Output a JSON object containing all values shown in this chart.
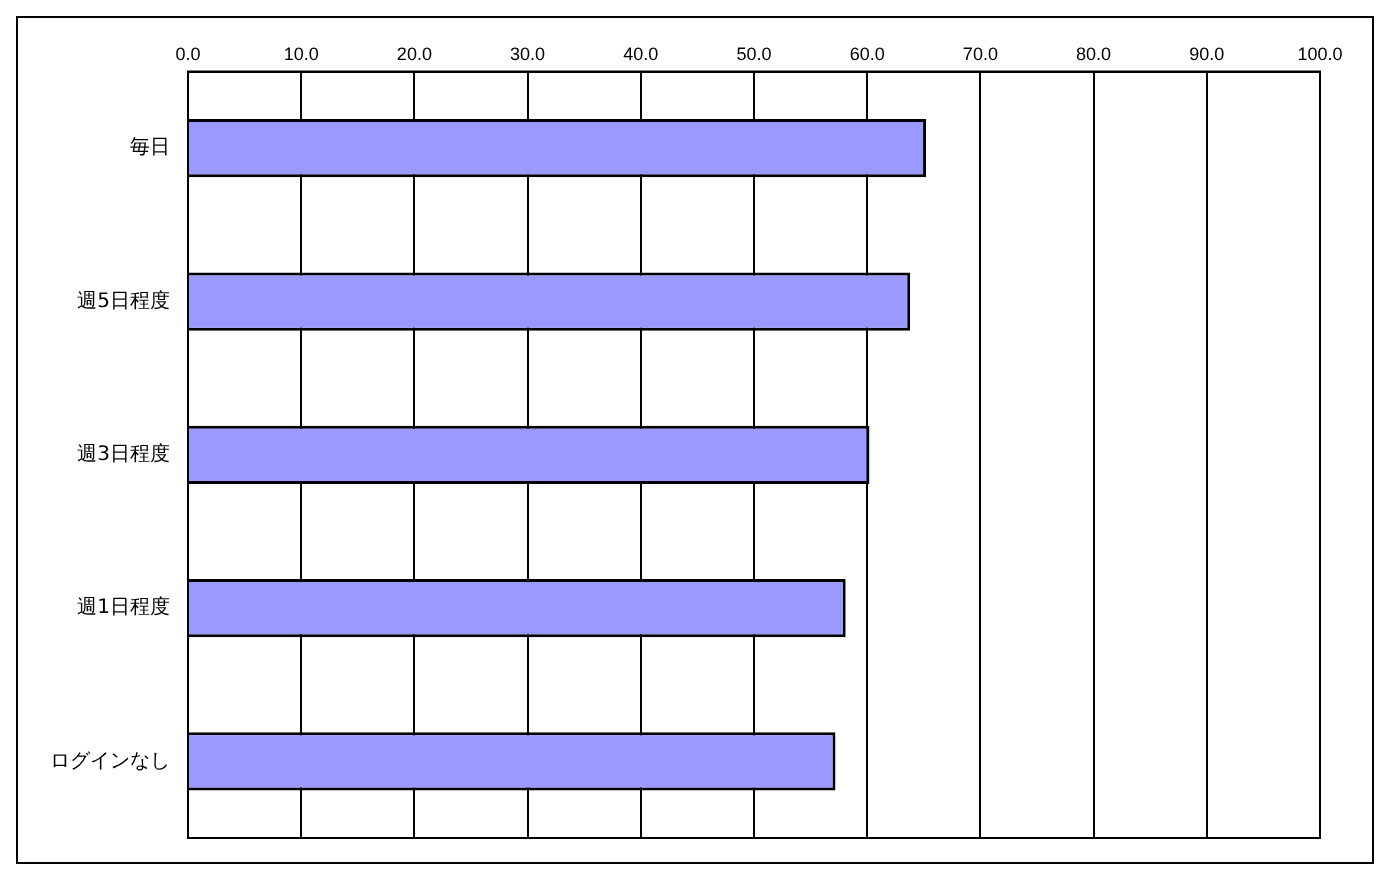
{
  "chart_data": {
    "type": "bar",
    "orientation": "horizontal",
    "categories": [
      "毎日",
      "週5日程度",
      "週3日程度",
      "週1日程度",
      "ログインなし"
    ],
    "values": [
      65.2,
      63.8,
      60.2,
      58.1,
      57.2
    ],
    "color": "#9999ff",
    "xlim": [
      0,
      100
    ],
    "xticks": [
      {
        "value": 0,
        "label": "0.0"
      },
      {
        "value": 10,
        "label": "10.0"
      },
      {
        "value": 20,
        "label": "20.0"
      },
      {
        "value": 30,
        "label": "30.0"
      },
      {
        "value": 40,
        "label": "40.0"
      },
      {
        "value": 50,
        "label": "50.0"
      },
      {
        "value": 60,
        "label": "60.0"
      },
      {
        "value": 70,
        "label": "70.0"
      },
      {
        "value": 80,
        "label": "80.0"
      },
      {
        "value": 90,
        "label": "90.0"
      },
      {
        "value": 100,
        "label": "100.0"
      }
    ],
    "grid": "x",
    "legend": false
  }
}
